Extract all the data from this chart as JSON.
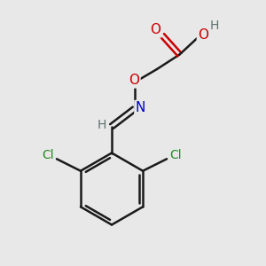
{
  "bg_color": "#e8e8e8",
  "atom_colors": {
    "C": "#000000",
    "H": "#607070",
    "O": "#cc0000",
    "N": "#0000cc",
    "Cl": "#228b22"
  },
  "bond_color": "#1a1a1a",
  "bond_width": 1.8,
  "figsize": [
    3.0,
    3.0
  ],
  "dpi": 100
}
